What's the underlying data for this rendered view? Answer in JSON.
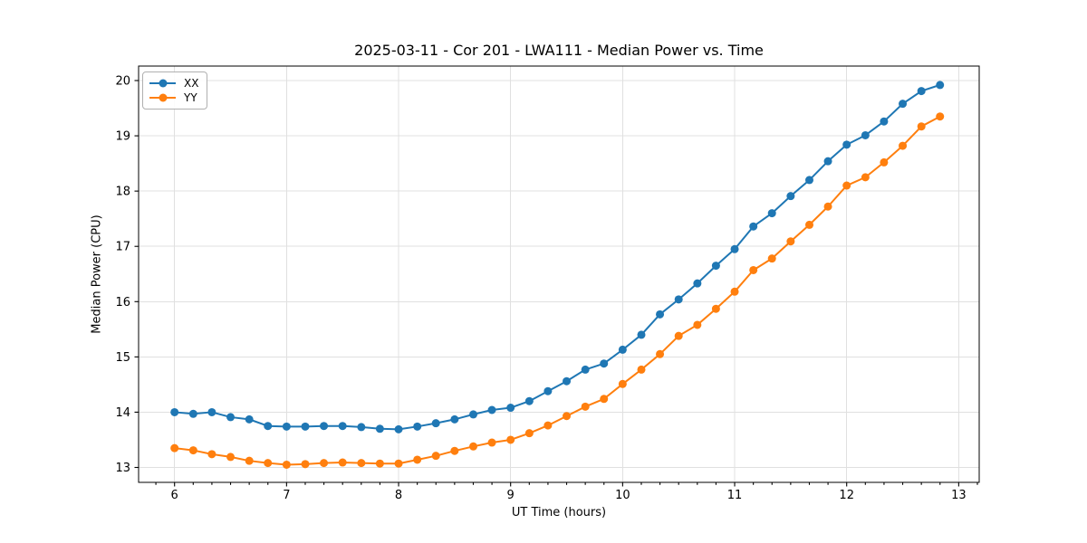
{
  "chart_data": {
    "type": "line",
    "title": "2025-03-11 - Cor 201 - LWA111 - Median Power vs. Time",
    "xlabel": "UT Time (hours)",
    "ylabel": "Median Power (CPU)",
    "xlim": [
      5.679,
      13.183
    ],
    "ylim": [
      12.73,
      20.262
    ],
    "x_ticks": [
      6,
      7,
      8,
      9,
      10,
      11,
      12,
      13
    ],
    "y_ticks": [
      13,
      14,
      15,
      16,
      17,
      18,
      19,
      20
    ],
    "x_minor_tick_step": 0.1667,
    "grid": true,
    "grid_color": "#e0e0e0",
    "legend_position": "upper-left",
    "x": [
      6.0,
      6.167,
      6.333,
      6.5,
      6.667,
      6.833,
      7.0,
      7.167,
      7.333,
      7.5,
      7.667,
      7.833,
      8.0,
      8.167,
      8.333,
      8.5,
      8.667,
      8.833,
      9.0,
      9.167,
      9.333,
      9.5,
      9.667,
      9.833,
      10.0,
      10.167,
      10.333,
      10.5,
      10.667,
      10.833,
      11.0,
      11.167,
      11.333,
      11.5,
      11.667,
      11.833,
      12.0,
      12.167,
      12.333,
      12.5,
      12.667,
      12.833
    ],
    "series": [
      {
        "name": "XX",
        "color": "#1f77b4",
        "values": [
          14.0,
          13.97,
          14.0,
          13.91,
          13.87,
          13.75,
          13.74,
          13.74,
          13.75,
          13.75,
          13.73,
          13.7,
          13.69,
          13.74,
          13.8,
          13.87,
          13.96,
          14.04,
          14.08,
          14.2,
          14.38,
          14.56,
          14.77,
          14.88,
          15.13,
          15.4,
          15.77,
          16.04,
          16.33,
          16.65,
          16.95,
          17.36,
          17.6,
          17.91,
          18.2,
          18.54,
          18.84,
          19.01,
          19.26,
          19.58,
          19.81,
          19.92
        ]
      },
      {
        "name": "YY",
        "color": "#ff7f0e",
        "values": [
          13.35,
          13.31,
          13.24,
          13.19,
          13.12,
          13.08,
          13.05,
          13.06,
          13.08,
          13.09,
          13.08,
          13.07,
          13.07,
          13.14,
          13.21,
          13.3,
          13.38,
          13.45,
          13.5,
          13.62,
          13.76,
          13.93,
          14.1,
          14.24,
          14.51,
          14.77,
          15.05,
          15.38,
          15.58,
          15.87,
          16.18,
          16.57,
          16.78,
          17.09,
          17.39,
          17.72,
          18.1,
          18.25,
          18.52,
          18.82,
          19.17,
          19.35
        ]
      }
    ]
  }
}
